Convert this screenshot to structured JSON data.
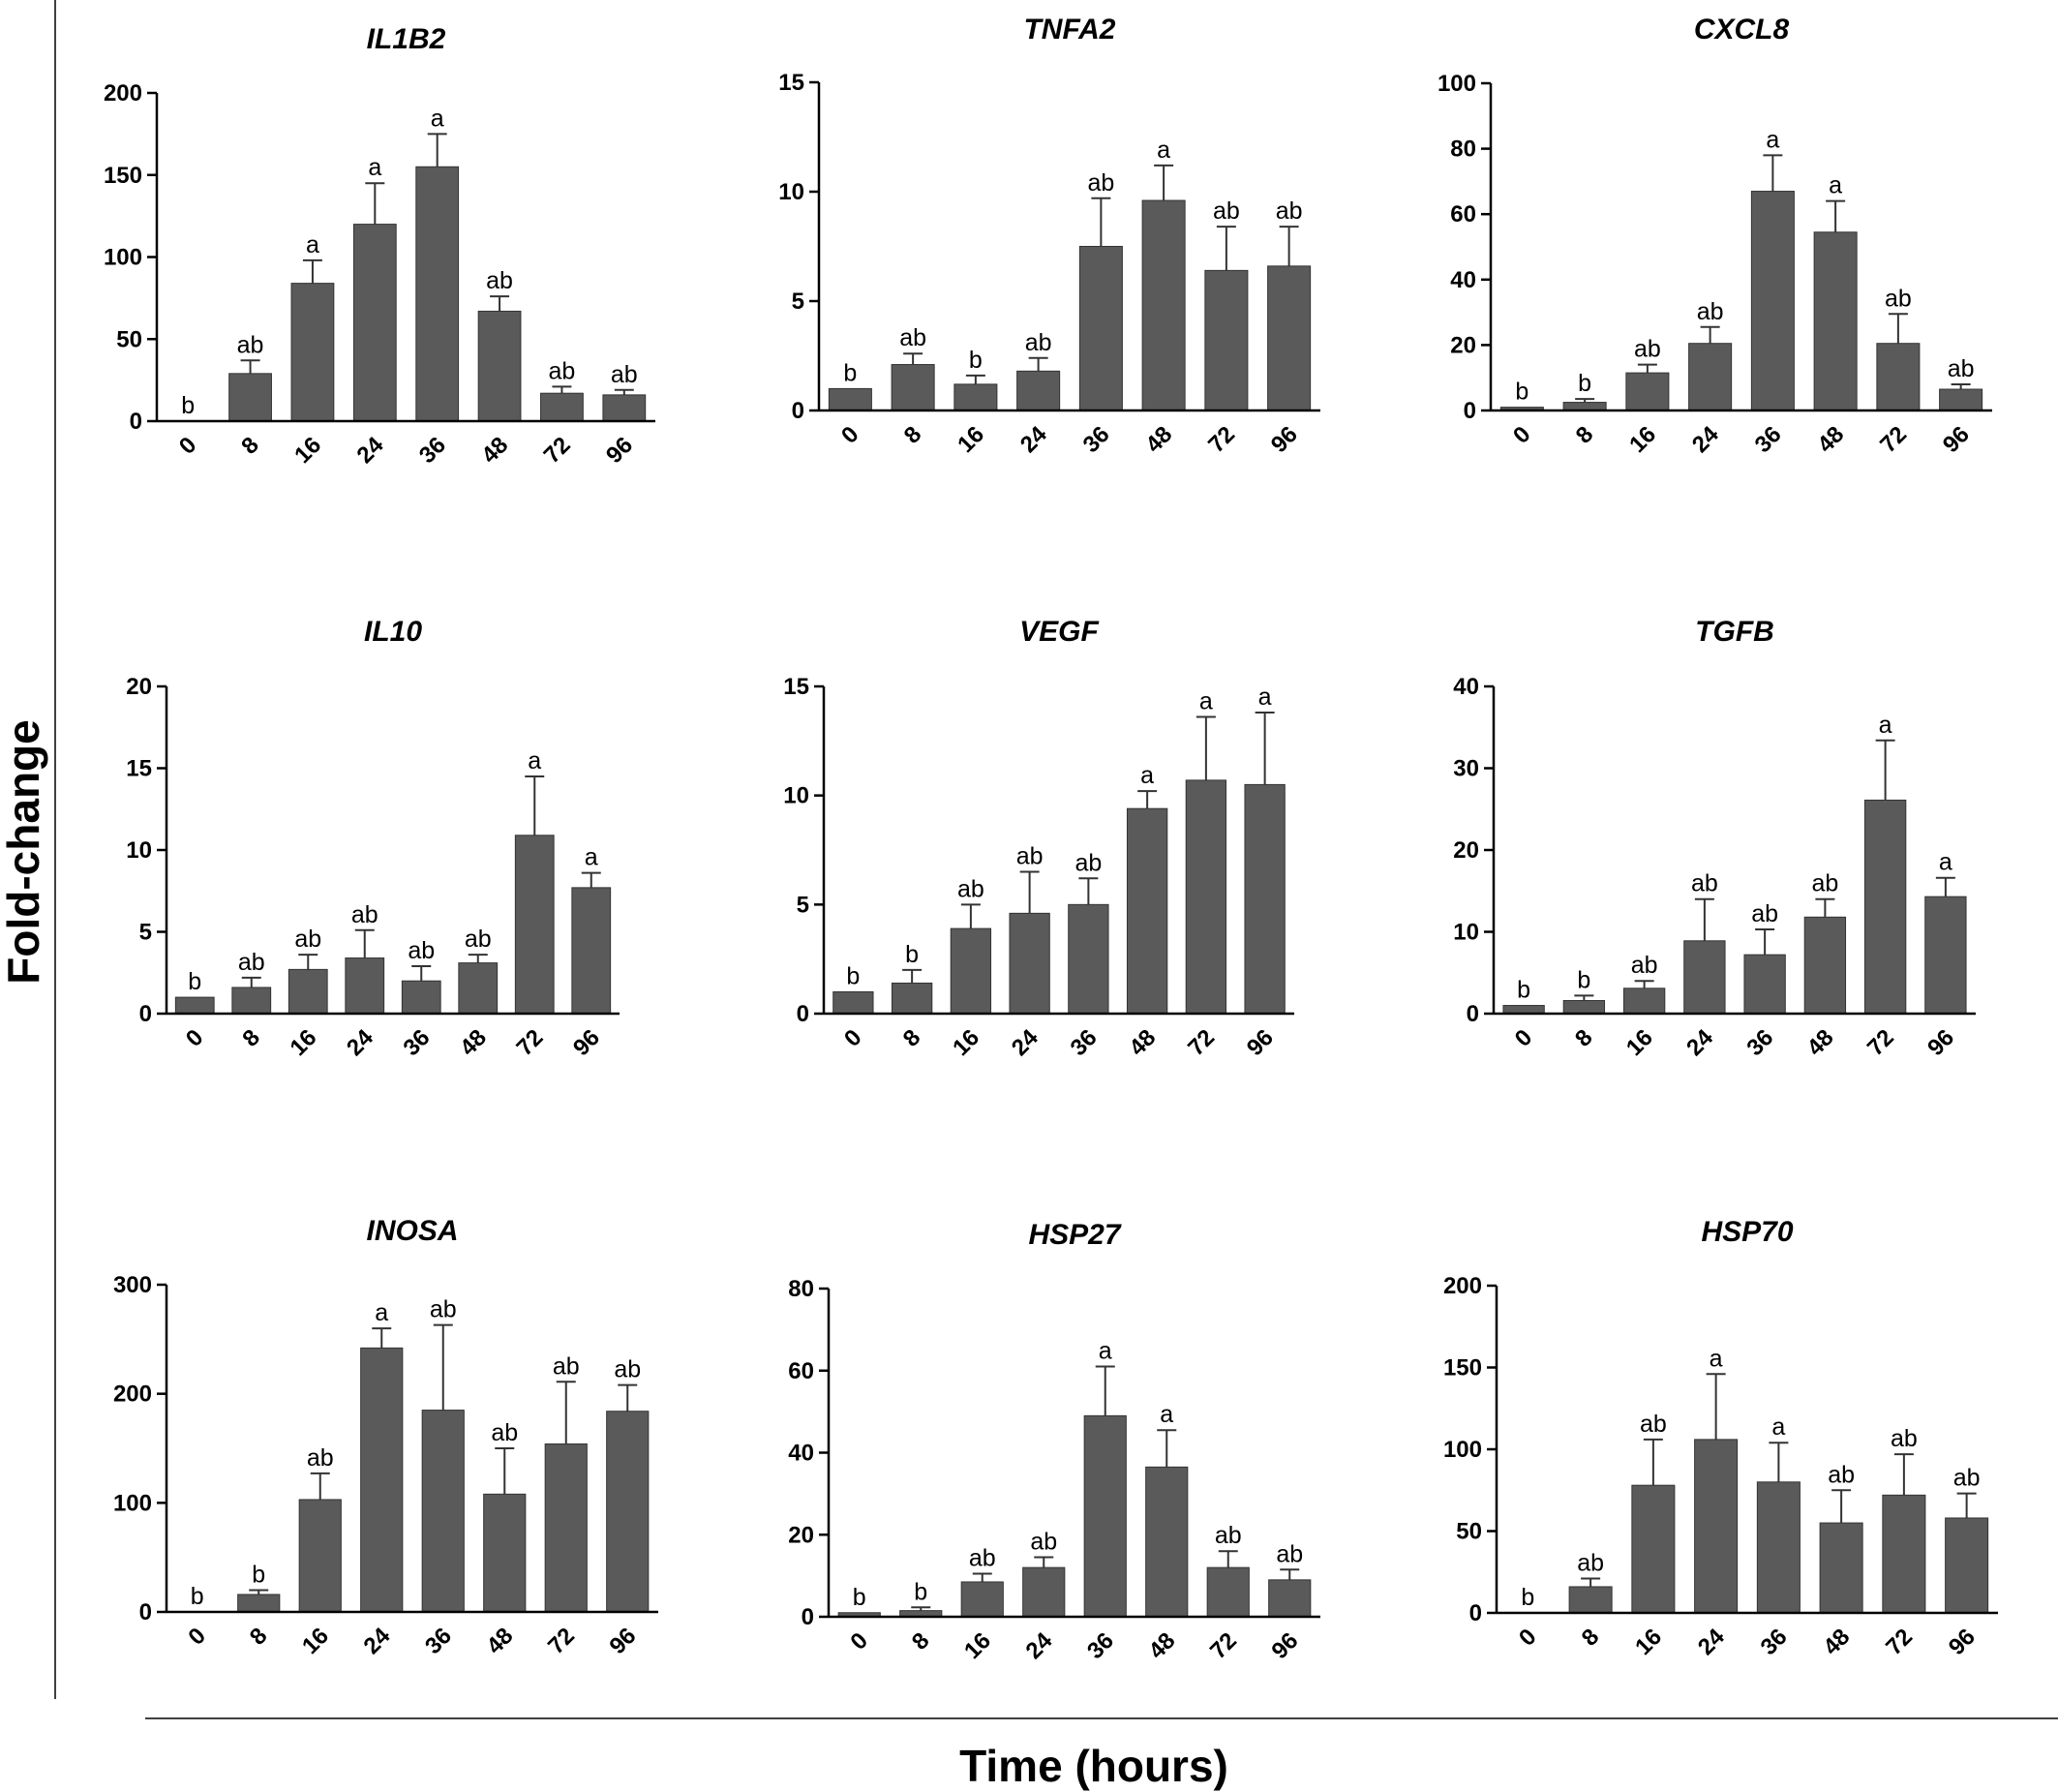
{
  "figure": {
    "y_axis_title": "Fold-change",
    "x_axis_title": "Time (hours)",
    "bar_color": "#5a5a5a"
  },
  "chart_data": [
    {
      "type": "bar",
      "title": "IL1B2",
      "categories": [
        "0",
        "8",
        "16",
        "24",
        "36",
        "48",
        "72",
        "96"
      ],
      "values": [
        0,
        29,
        84,
        120,
        155,
        67,
        17,
        16
      ],
      "errors": [
        0,
        8,
        14,
        25,
        20,
        9,
        4,
        3
      ],
      "labels": [
        "b",
        "ab",
        "a",
        "a",
        "a",
        "ab",
        "ab",
        "ab"
      ],
      "ylim": [
        0,
        200
      ],
      "yticks": [
        0,
        50,
        100,
        150,
        200
      ]
    },
    {
      "type": "bar",
      "title": "TNFA2",
      "categories": [
        "0",
        "8",
        "16",
        "24",
        "36",
        "48",
        "72",
        "96"
      ],
      "values": [
        1,
        2.1,
        1.2,
        1.8,
        7.5,
        9.6,
        6.4,
        6.6
      ],
      "errors": [
        0,
        0.5,
        0.4,
        0.6,
        2.2,
        1.6,
        2.0,
        1.8
      ],
      "labels": [
        "b",
        "ab",
        "b",
        "ab",
        "ab",
        "a",
        "ab",
        "ab"
      ],
      "ylim": [
        0,
        15
      ],
      "yticks": [
        0,
        5,
        10,
        15
      ]
    },
    {
      "type": "bar",
      "title": "CXCL8",
      "categories": [
        "0",
        "8",
        "16",
        "24",
        "36",
        "48",
        "72",
        "96"
      ],
      "values": [
        1,
        2.5,
        11.5,
        20.5,
        67,
        54.5,
        20.5,
        6.5
      ],
      "errors": [
        0,
        1,
        2.5,
        5,
        11,
        9.5,
        9,
        1.5
      ],
      "labels": [
        "b",
        "b",
        "ab",
        "ab",
        "a",
        "a",
        "ab",
        "ab"
      ],
      "ylim": [
        0,
        100
      ],
      "yticks": [
        0,
        20,
        40,
        60,
        80,
        100
      ]
    },
    {
      "type": "bar",
      "title": "IL10",
      "categories": [
        "0",
        "8",
        "16",
        "24",
        "36",
        "48",
        "72",
        "96"
      ],
      "values": [
        1,
        1.6,
        2.7,
        3.4,
        2.0,
        3.1,
        10.9,
        7.7
      ],
      "errors": [
        0,
        0.6,
        0.9,
        1.7,
        0.9,
        0.5,
        3.6,
        0.9
      ],
      "labels": [
        "b",
        "ab",
        "ab",
        "ab",
        "ab",
        "ab",
        "a",
        "a"
      ],
      "ylim": [
        0,
        20
      ],
      "yticks": [
        0,
        5,
        10,
        15,
        20
      ]
    },
    {
      "type": "bar",
      "title": "VEGF",
      "categories": [
        "0",
        "8",
        "16",
        "24",
        "36",
        "48",
        "72",
        "96"
      ],
      "values": [
        1,
        1.4,
        3.9,
        4.6,
        5.0,
        9.4,
        10.7,
        10.5
      ],
      "errors": [
        0,
        0.6,
        1.1,
        1.9,
        1.2,
        0.8,
        2.9,
        3.3
      ],
      "labels": [
        "b",
        "b",
        "ab",
        "ab",
        "ab",
        "a",
        "a",
        "a"
      ],
      "ylim": [
        0,
        15
      ],
      "yticks": [
        0,
        5,
        10,
        15
      ]
    },
    {
      "type": "bar",
      "title": "TGFB",
      "categories": [
        "0",
        "8",
        "16",
        "24",
        "36",
        "48",
        "72",
        "96"
      ],
      "values": [
        1,
        1.6,
        3.1,
        8.9,
        7.2,
        11.8,
        26.1,
        14.3
      ],
      "errors": [
        0,
        0.6,
        0.9,
        5.1,
        3.1,
        2.2,
        7.3,
        2.3
      ],
      "labels": [
        "b",
        "b",
        "ab",
        "ab",
        "ab",
        "ab",
        "a",
        "a"
      ],
      "ylim": [
        0,
        40
      ],
      "yticks": [
        0,
        10,
        20,
        30,
        40
      ]
    },
    {
      "type": "bar",
      "title": "INOSA",
      "categories": [
        "0",
        "8",
        "16",
        "24",
        "36",
        "48",
        "72",
        "96"
      ],
      "values": [
        0,
        16,
        103,
        242,
        185,
        108,
        154,
        184
      ],
      "errors": [
        0,
        4,
        24,
        18,
        78,
        42,
        57,
        24
      ],
      "labels": [
        "b",
        "b",
        "ab",
        "a",
        "ab",
        "ab",
        "ab",
        "ab"
      ],
      "ylim": [
        0,
        300
      ],
      "yticks": [
        0,
        100,
        200,
        300
      ]
    },
    {
      "type": "bar",
      "title": "HSP27",
      "categories": [
        "0",
        "8",
        "16",
        "24",
        "36",
        "48",
        "72",
        "96"
      ],
      "values": [
        1,
        1.5,
        8.5,
        12,
        49,
        36.5,
        12,
        9
      ],
      "errors": [
        0,
        0.8,
        2,
        2.5,
        12,
        9,
        4,
        2.5
      ],
      "labels": [
        "b",
        "b",
        "ab",
        "ab",
        "a",
        "a",
        "ab",
        "ab"
      ],
      "ylim": [
        0,
        80
      ],
      "yticks": [
        0,
        20,
        40,
        60,
        80
      ]
    },
    {
      "type": "bar",
      "title": "HSP70",
      "categories": [
        "0",
        "8",
        "16",
        "24",
        "36",
        "48",
        "72",
        "96"
      ],
      "values": [
        0,
        16,
        78,
        106,
        80,
        55,
        72,
        58
      ],
      "errors": [
        0,
        5,
        28,
        40,
        24,
        20,
        25,
        15
      ],
      "labels": [
        "b",
        "ab",
        "ab",
        "a",
        "a",
        "ab",
        "ab",
        "ab"
      ],
      "ylim": [
        0,
        200
      ],
      "yticks": [
        0,
        50,
        100,
        150,
        200
      ]
    }
  ]
}
